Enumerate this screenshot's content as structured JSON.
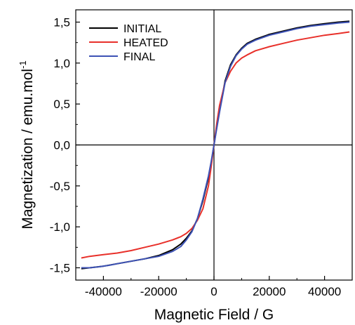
{
  "chart_data": {
    "type": "line",
    "title": "",
    "xlabel": "Magnetic Field / G",
    "ylabel": "Magnetization / emu.mol",
    "ylabel_superscript": "-1",
    "xlim": [
      -50000,
      50000
    ],
    "ylim": [
      -1.65,
      1.65
    ],
    "x_ticks": [
      -40000,
      -20000,
      0,
      20000,
      40000
    ],
    "x_tick_labels": [
      "-40000",
      "-20000",
      "0",
      "20000",
      "40000"
    ],
    "y_ticks": [
      -1.5,
      -1.0,
      -0.5,
      0.0,
      0.5,
      1.0,
      1.5
    ],
    "y_tick_labels": [
      "-1,5",
      "-1,0",
      "-0,5",
      "0,0",
      "0,5",
      "1,0",
      "1,5"
    ],
    "grid": false,
    "zero_lines": true,
    "legend_position": "top-left",
    "series": [
      {
        "name": "INITIAL",
        "color": "#000000",
        "points": [
          [
            -48000,
            -1.51
          ],
          [
            -45000,
            -1.5
          ],
          [
            -40000,
            -1.48
          ],
          [
            -35000,
            -1.45
          ],
          [
            -30000,
            -1.42
          ],
          [
            -25000,
            -1.39
          ],
          [
            -20000,
            -1.35
          ],
          [
            -15000,
            -1.28
          ],
          [
            -12000,
            -1.21
          ],
          [
            -10000,
            -1.14
          ],
          [
            -8000,
            -1.05
          ],
          [
            -6000,
            -0.9
          ],
          [
            -4000,
            -0.68
          ],
          [
            -2000,
            -0.4
          ],
          [
            -1000,
            -0.22
          ],
          [
            0,
            0.0
          ],
          [
            1000,
            0.22
          ],
          [
            2000,
            0.42
          ],
          [
            4000,
            0.78
          ],
          [
            6000,
            0.98
          ],
          [
            8000,
            1.1
          ],
          [
            10000,
            1.18
          ],
          [
            12000,
            1.24
          ],
          [
            15000,
            1.29
          ],
          [
            20000,
            1.35
          ],
          [
            25000,
            1.39
          ],
          [
            30000,
            1.43
          ],
          [
            35000,
            1.46
          ],
          [
            40000,
            1.48
          ],
          [
            45000,
            1.5
          ],
          [
            49000,
            1.51
          ]
        ]
      },
      {
        "name": "HEATED",
        "color": "#e8302a",
        "points": [
          [
            -48000,
            -1.38
          ],
          [
            -45000,
            -1.36
          ],
          [
            -40000,
            -1.34
          ],
          [
            -35000,
            -1.32
          ],
          [
            -30000,
            -1.29
          ],
          [
            -25000,
            -1.25
          ],
          [
            -20000,
            -1.21
          ],
          [
            -15000,
            -1.16
          ],
          [
            -12000,
            -1.12
          ],
          [
            -10000,
            -1.08
          ],
          [
            -8000,
            -1.02
          ],
          [
            -6000,
            -0.92
          ],
          [
            -4000,
            -0.78
          ],
          [
            -2000,
            -0.5
          ],
          [
            -1000,
            -0.26
          ],
          [
            0,
            0.0
          ],
          [
            1000,
            0.26
          ],
          [
            2000,
            0.48
          ],
          [
            4000,
            0.76
          ],
          [
            6000,
            0.9
          ],
          [
            8000,
            1.0
          ],
          [
            10000,
            1.06
          ],
          [
            12000,
            1.1
          ],
          [
            15000,
            1.15
          ],
          [
            20000,
            1.2
          ],
          [
            25000,
            1.24
          ],
          [
            30000,
            1.28
          ],
          [
            35000,
            1.31
          ],
          [
            40000,
            1.34
          ],
          [
            45000,
            1.36
          ],
          [
            49000,
            1.38
          ]
        ]
      },
      {
        "name": "FINAL",
        "color": "#3d52b5",
        "points": [
          [
            -48000,
            -1.5
          ],
          [
            -45000,
            -1.5
          ],
          [
            -42000,
            -1.49
          ],
          [
            -38000,
            -1.47
          ],
          [
            -35000,
            -1.45
          ],
          [
            -30000,
            -1.42
          ],
          [
            -25000,
            -1.39
          ],
          [
            -20000,
            -1.36
          ],
          [
            -15000,
            -1.3
          ],
          [
            -12000,
            -1.24
          ],
          [
            -10000,
            -1.16
          ],
          [
            -8000,
            -1.06
          ],
          [
            -6000,
            -0.9
          ],
          [
            -4000,
            -0.66
          ],
          [
            -2000,
            -0.38
          ],
          [
            -1000,
            -0.2
          ],
          [
            0,
            0.0
          ],
          [
            1000,
            0.2
          ],
          [
            2000,
            0.4
          ],
          [
            4000,
            0.76
          ],
          [
            6000,
            0.96
          ],
          [
            8000,
            1.09
          ],
          [
            10000,
            1.17
          ],
          [
            12000,
            1.23
          ],
          [
            15000,
            1.28
          ],
          [
            20000,
            1.34
          ],
          [
            25000,
            1.38
          ],
          [
            30000,
            1.42
          ],
          [
            35000,
            1.45
          ],
          [
            40000,
            1.47
          ],
          [
            45000,
            1.49
          ],
          [
            49000,
            1.5
          ]
        ]
      }
    ]
  }
}
